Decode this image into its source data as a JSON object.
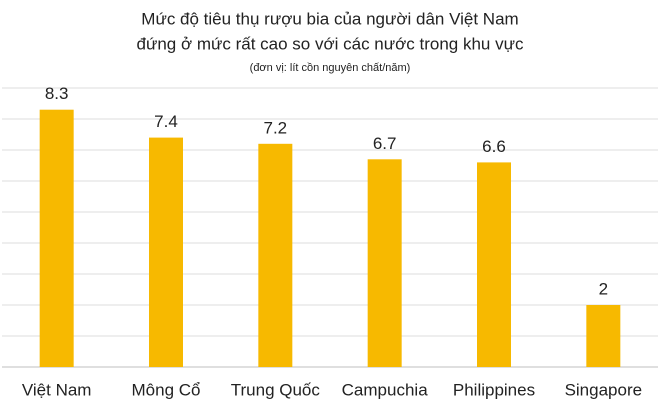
{
  "chart_data": {
    "type": "bar",
    "title": [
      "Mức độ tiêu thụ rượu bia của người dân Việt Nam",
      "đứng ở mức rất cao so với các nước trong khu vực"
    ],
    "subtitle": "(đơn vị: lít cồn nguyên chất/năm)",
    "categories": [
      "Việt Nam",
      "Mông Cổ",
      "Trung Quốc",
      "Campuchia",
      "Philippines",
      "Singapore"
    ],
    "values": [
      8.3,
      7.4,
      7.2,
      6.7,
      6.6,
      2
    ],
    "color": "#f7b900",
    "ylim": [
      0,
      9
    ],
    "yticks": [
      0,
      1,
      2,
      3,
      4,
      5,
      6,
      7,
      8,
      9
    ],
    "grid": true
  }
}
